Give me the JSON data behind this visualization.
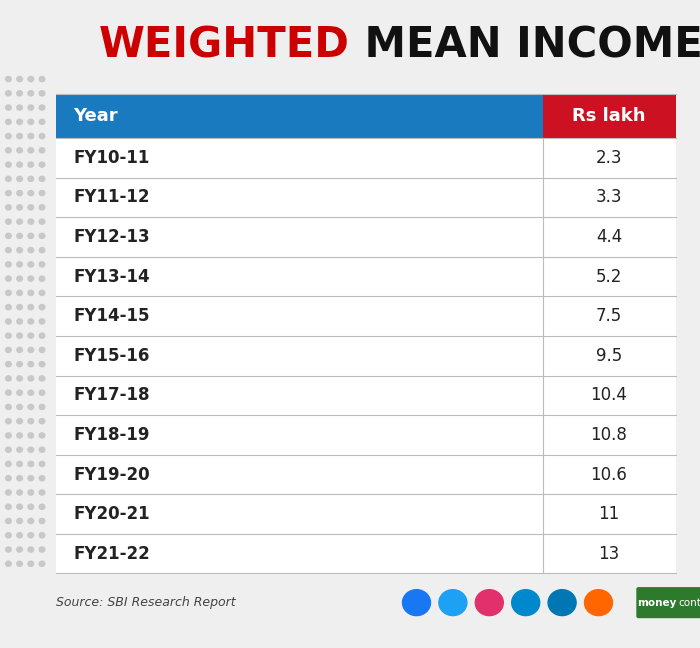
{
  "title_weighted": "WEIGHTED",
  "title_rest": " MEAN INCOME",
  "title_color_weighted": "#cc0000",
  "title_color_rest": "#111111",
  "header_bg_color": "#1a7abf",
  "header_text_color": "#ffffff",
  "header_col1": "Year",
  "header_col2": "Rs lakh",
  "value_header_bg": "#cc1122",
  "rows": [
    [
      "FY10-11",
      "2.3"
    ],
    [
      "FY11-12",
      "3.3"
    ],
    [
      "FY12-13",
      "4.4"
    ],
    [
      "FY13-14",
      "5.2"
    ],
    [
      "FY14-15",
      "7.5"
    ],
    [
      "FY15-16",
      "9.5"
    ],
    [
      "FY17-18",
      "10.4"
    ],
    [
      "FY18-19",
      "10.8"
    ],
    [
      "FY19-20",
      "10.6"
    ],
    [
      "FY20-21",
      "11"
    ],
    [
      "FY21-22",
      "13"
    ]
  ],
  "row_color": "#ffffff",
  "line_color": "#bbbbbb",
  "source_text": "Source: SBI Research Report",
  "bg_color": "#efefef",
  "table_bg": "#ffffff"
}
